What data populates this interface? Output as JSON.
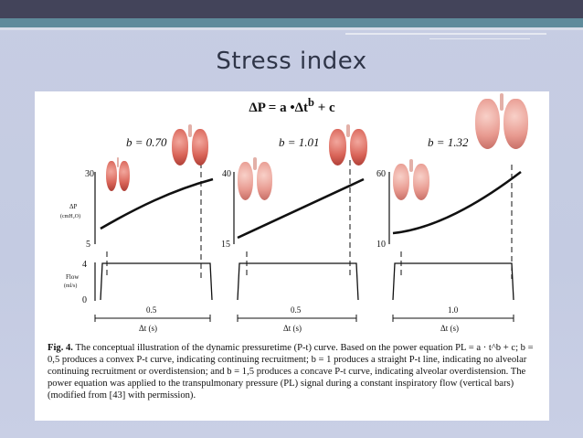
{
  "slide": {
    "title": "Stress index"
  },
  "figure": {
    "equation": "ΔP = a •Δt",
    "equation_exp": "b",
    "equation_tail": "+ c",
    "panels": [
      {
        "b_label": "b = 0.70",
        "ymax": "30",
        "ymin": "5",
        "dp_label": "ΔP",
        "dp_unit": "(cmH₂O)",
        "flow_top": "4",
        "flow_zero": "0",
        "flow_label": "Flow",
        "flow_unit": "(ml/s)",
        "dt_value": "0.5",
        "dt_label": "Δt (s)"
      },
      {
        "b_label": "b = 1.01",
        "ymax": "40",
        "ymin": "15",
        "dt_value": "0.5",
        "dt_label": "Δt (s)"
      },
      {
        "b_label": "b = 1.32",
        "ymax": "60",
        "ymin": "10",
        "dt_value": "1.0",
        "dt_label": "Δt (s)"
      }
    ],
    "caption": {
      "label": "Fig. 4.",
      "text": "The conceptual illustration of the dynamic pressuretime (P-t) curve. Based on the power equation PL = a · t^b + c; b = 0,5 produces a convex P-t curve, indicating continuing recruitment; b = 1 produces a straight P-t line, indicating no alveolar continuing recruitment or overdistension; and b = 1,5 produces a concave P-t curve, indicating alveolar overdistension. The power equation was applied to the transpulmonary pressure (PL) signal during a constant inspiratory flow (vertical bars) (modified from [43] with permission)."
    }
  },
  "colors": {
    "header_dark": "#43445a",
    "header_teal": "#5f8b9b",
    "background": "#c7cde3",
    "lung": "#d96458"
  }
}
